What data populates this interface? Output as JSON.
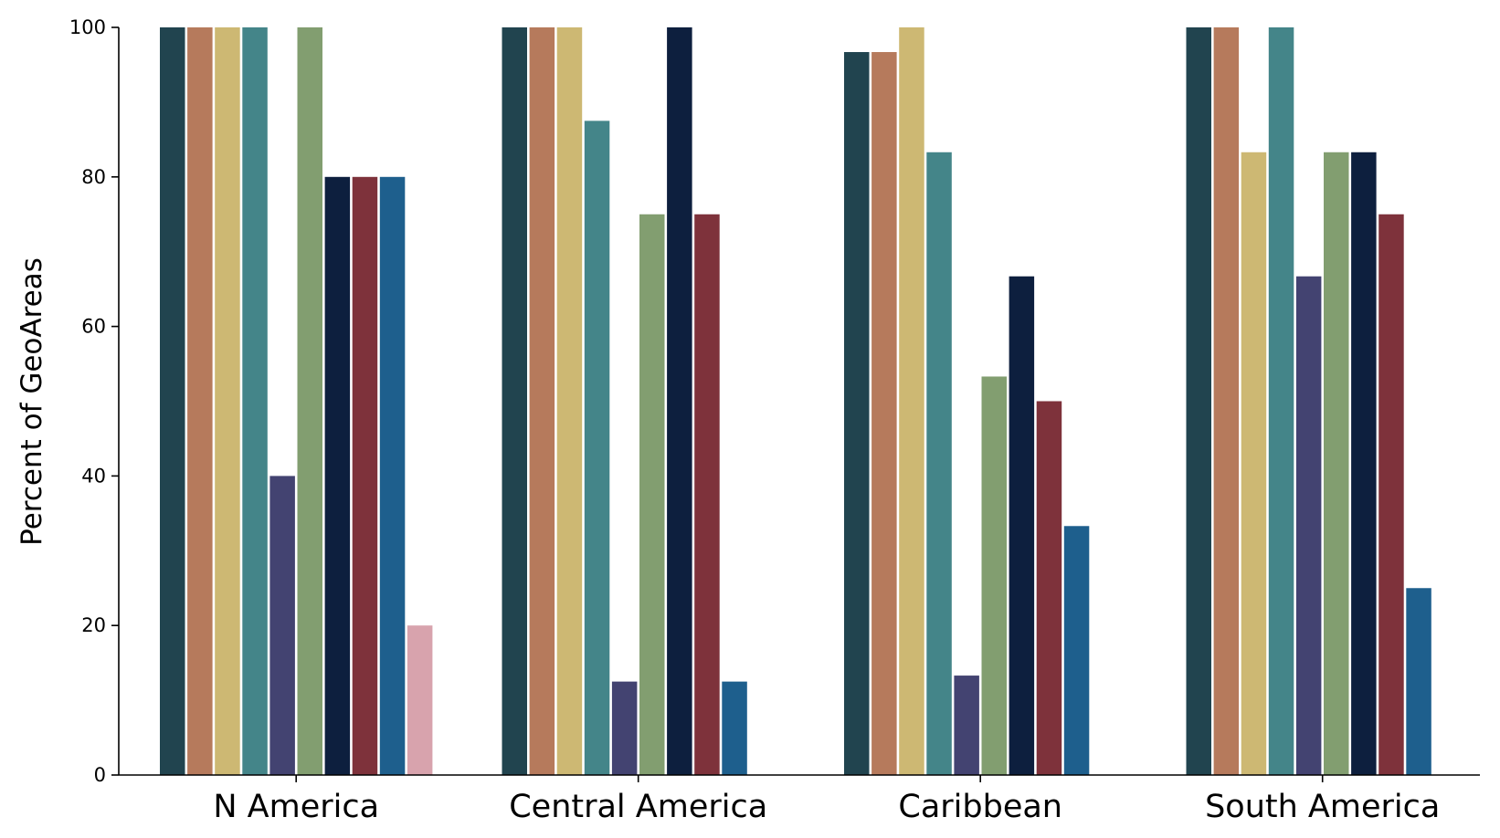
{
  "chart_data": {
    "type": "bar",
    "title": "",
    "xlabel": "",
    "ylabel": "Percent of GeoAreas",
    "ylim": [
      0,
      100
    ],
    "yticks": [
      0,
      20,
      40,
      60,
      80,
      100
    ],
    "grid": false,
    "legend": "none",
    "categories": [
      "N America",
      "Central America",
      "Caribbean",
      "South America"
    ],
    "series": [
      {
        "color": "#21444f",
        "values": [
          100,
          100,
          96.7,
          100
        ]
      },
      {
        "color": "#b67a5c",
        "values": [
          100,
          100,
          96.7,
          100
        ]
      },
      {
        "color": "#cdb873",
        "values": [
          100,
          100,
          100,
          83.3
        ]
      },
      {
        "color": "#448589",
        "values": [
          100,
          87.5,
          83.3,
          100
        ]
      },
      {
        "color": "#434371",
        "values": [
          40,
          12.5,
          13.3,
          66.7
        ]
      },
      {
        "color": "#829e70",
        "values": [
          100,
          75,
          53.3,
          83.3
        ]
      },
      {
        "color": "#0d1f3e",
        "values": [
          80,
          100,
          66.7,
          83.3
        ]
      },
      {
        "color": "#7e323b",
        "values": [
          80,
          75,
          50,
          75
        ]
      },
      {
        "color": "#1e5f8d",
        "values": [
          80,
          12.5,
          33.3,
          25
        ]
      },
      {
        "color": "#d8a3ad",
        "values": [
          20,
          0,
          0,
          0
        ]
      }
    ]
  }
}
